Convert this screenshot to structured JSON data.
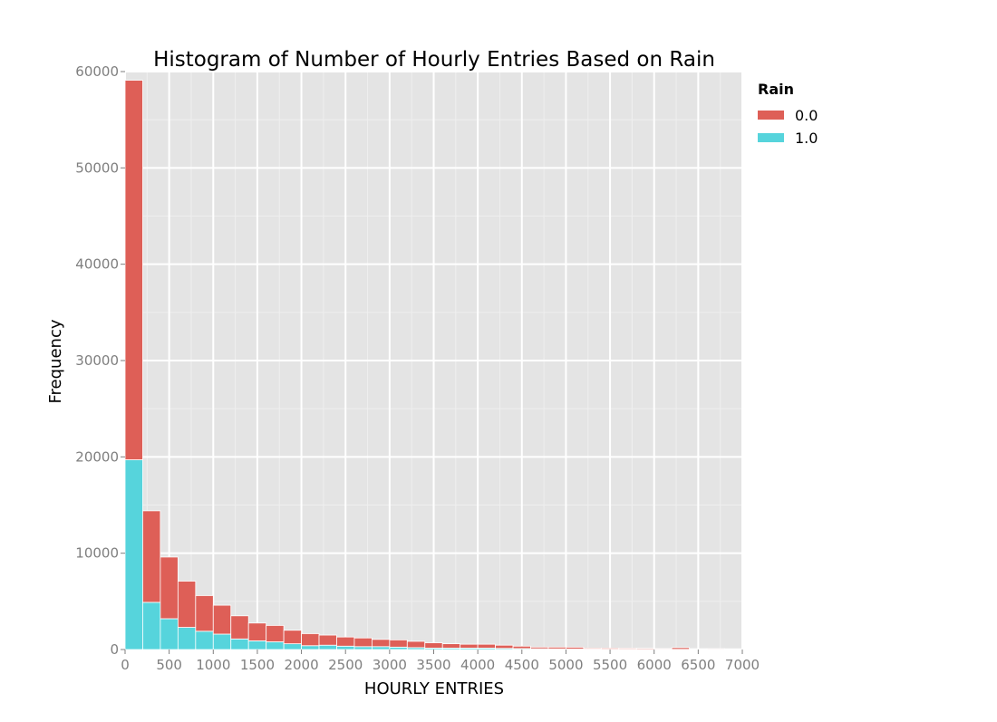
{
  "chart_data": {
    "type": "bar",
    "stacked": true,
    "title": "Histogram of Number of Hourly Entries Based on Rain",
    "xlabel": "HOURLY ENTRIES",
    "ylabel": "Frequency",
    "xlim": [
      0,
      7000
    ],
    "ylim": [
      0,
      60000
    ],
    "xticks": [
      0,
      500,
      1000,
      1500,
      2000,
      2500,
      3000,
      3500,
      4000,
      4500,
      5000,
      5500,
      6000,
      6500,
      7000
    ],
    "yticks": [
      0,
      10000,
      20000,
      30000,
      40000,
      50000,
      60000
    ],
    "grid": true,
    "legend": {
      "title": "Rain",
      "position": "right"
    },
    "bin_edges": [
      0,
      200,
      400,
      600,
      800,
      1000,
      1200,
      1400,
      1600,
      1800,
      2000,
      2200,
      2400,
      2600,
      2800,
      3000,
      3200,
      3400,
      3600,
      3800,
      4000,
      4200,
      4400,
      4600,
      4800,
      5000,
      5200,
      5400,
      5600,
      5800,
      6000,
      6200,
      6400,
      6600,
      6800,
      7000
    ],
    "series": [
      {
        "name": "1.0",
        "color": "#56d4dc",
        "values": [
          19700,
          4900,
          3200,
          2300,
          1900,
          1600,
          1100,
          900,
          800,
          600,
          400,
          450,
          350,
          300,
          300,
          250,
          200,
          150,
          150,
          150,
          150,
          120,
          100,
          80,
          70,
          60,
          50,
          40,
          40,
          30,
          20,
          20,
          20,
          10,
          10
        ]
      },
      {
        "name": "0.0",
        "color": "#de5f57",
        "values": [
          39400,
          9500,
          6400,
          4800,
          3700,
          3000,
          2400,
          1850,
          1700,
          1400,
          1250,
          1050,
          950,
          900,
          750,
          750,
          650,
          550,
          450,
          400,
          400,
          330,
          250,
          170,
          180,
          180,
          100,
          110,
          100,
          100,
          80,
          180,
          70,
          80,
          70
        ]
      }
    ]
  }
}
